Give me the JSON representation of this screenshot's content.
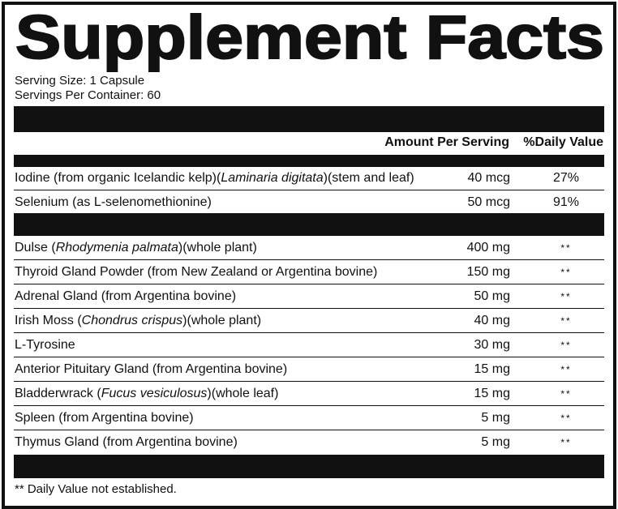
{
  "title": "Supplement Facts",
  "serving_size": "Serving Size: 1 Capsule",
  "servings_per_container": "Servings Per Container: 60",
  "header": {
    "amount": "Amount Per Serving",
    "daily_value": "%Daily Value"
  },
  "groups": [
    {
      "rows": [
        {
          "name": [
            {
              "text": "Iodine (from organic Icelandic kelp)("
            },
            {
              "text": "Laminaria digitata",
              "italic": true
            },
            {
              "text": ")(stem and leaf)"
            }
          ],
          "amount": "40 mcg",
          "daily_value": "27%"
        },
        {
          "name": [
            {
              "text": "Selenium (as L-selenomethionine)"
            }
          ],
          "amount": "50 mcg",
          "daily_value": "91%"
        }
      ]
    },
    {
      "rows": [
        {
          "name": [
            {
              "text": "Dulse ("
            },
            {
              "text": "Rhodymenia palmata",
              "italic": true
            },
            {
              "text": ")(whole plant)"
            }
          ],
          "amount": "400 mg",
          "daily_value": "**"
        },
        {
          "name": [
            {
              "text": "Thyroid Gland Powder (from New Zealand or Argentina bovine)"
            }
          ],
          "amount": "150 mg",
          "daily_value": "**"
        },
        {
          "name": [
            {
              "text": "Adrenal Gland (from Argentina bovine)"
            }
          ],
          "amount": "50 mg",
          "daily_value": "**"
        },
        {
          "name": [
            {
              "text": "Irish Moss ("
            },
            {
              "text": "Chondrus crispus",
              "italic": true
            },
            {
              "text": ")(whole plant)"
            }
          ],
          "amount": "40 mg",
          "daily_value": "**"
        },
        {
          "name": [
            {
              "text": "L-Tyrosine"
            }
          ],
          "amount": "30 mg",
          "daily_value": "**"
        },
        {
          "name": [
            {
              "text": "Anterior Pituitary Gland (from Argentina bovine)"
            }
          ],
          "amount": "15 mg",
          "daily_value": "**"
        },
        {
          "name": [
            {
              "text": "Bladderwrack ("
            },
            {
              "text": "Fucus vesiculosus",
              "italic": true
            },
            {
              "text": ")(whole leaf)"
            }
          ],
          "amount": "15 mg",
          "daily_value": "**"
        },
        {
          "name": [
            {
              "text": "Spleen (from Argentina bovine)"
            }
          ],
          "amount": "5 mg",
          "daily_value": "**"
        },
        {
          "name": [
            {
              "text": "Thymus Gland (from Argentina bovine)"
            }
          ],
          "amount": "5 mg",
          "daily_value": "**"
        }
      ]
    }
  ],
  "footnote": "** Daily Value not established."
}
